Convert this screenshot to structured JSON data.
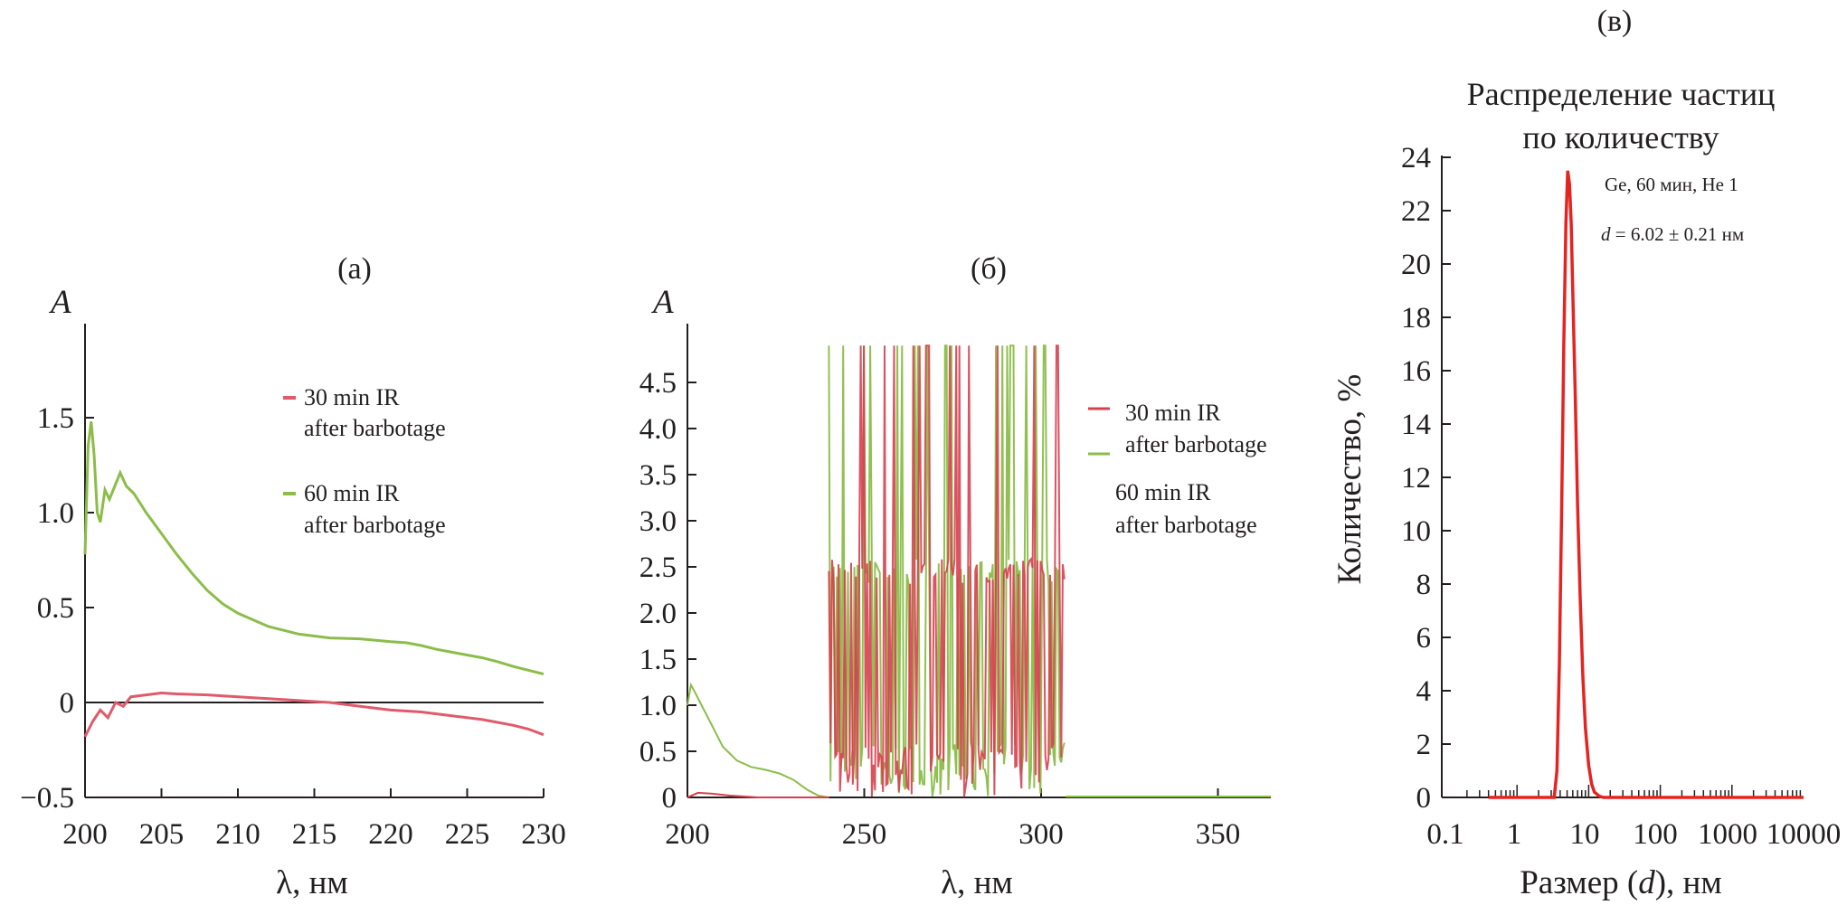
{
  "chart_data": [
    {
      "type": "line",
      "panel_label": "(а)",
      "ylabel": "A",
      "xlabel": "λ, нм",
      "xlim": [
        200,
        230
      ],
      "ylim": [
        -0.5,
        1.8
      ],
      "xticks": [
        "200",
        "205",
        "210",
        "215",
        "220",
        "225",
        "230"
      ],
      "yticks": [
        "−0.5",
        "0",
        "0.5",
        "1.0",
        "1.5"
      ],
      "legend": [
        "30 min IR",
        "after barbotage",
        "60 min IR",
        "after barbotage"
      ],
      "series": [
        {
          "name": "60 min IR after barbotage",
          "color": "#8bbd49",
          "x": [
            200,
            200.2,
            200.4,
            200.6,
            200.8,
            201.0,
            201.3,
            201.6,
            202.0,
            202.3,
            202.7,
            203.2,
            204,
            205,
            206,
            207,
            208,
            209,
            210,
            212,
            214,
            216,
            218,
            220,
            221,
            222,
            223,
            224,
            225,
            226,
            227,
            228,
            229,
            229.5,
            230
          ],
          "y": [
            0.78,
            1.35,
            1.48,
            1.3,
            1.0,
            0.95,
            1.12,
            1.07,
            1.15,
            1.21,
            1.14,
            1.1,
            1.0,
            0.89,
            0.78,
            0.68,
            0.59,
            0.52,
            0.47,
            0.4,
            0.36,
            0.34,
            0.335,
            0.32,
            0.315,
            0.3,
            0.28,
            0.265,
            0.25,
            0.235,
            0.215,
            0.19,
            0.17,
            0.16,
            0.15
          ]
        },
        {
          "name": "30 min IR after barbotage",
          "color": "#e05a6a",
          "x": [
            200,
            200.5,
            201,
            201.5,
            202,
            202.5,
            203,
            204,
            205,
            206,
            208,
            210,
            212,
            214,
            216,
            218,
            220,
            222,
            224,
            226,
            228,
            229,
            230
          ],
          "y": [
            -0.18,
            -0.1,
            -0.04,
            -0.08,
            0.0,
            -0.02,
            0.03,
            0.04,
            0.05,
            0.045,
            0.04,
            0.03,
            0.02,
            0.01,
            0.0,
            -0.02,
            -0.04,
            -0.05,
            -0.07,
            -0.09,
            -0.12,
            -0.14,
            -0.17
          ]
        }
      ]
    },
    {
      "type": "line",
      "panel_label": "(б)",
      "ylabel": "A",
      "xlabel": "λ, нм",
      "xlim": [
        200,
        365
      ],
      "ylim": [
        0,
        4.9
      ],
      "xticks": [
        "200",
        "250",
        "300",
        "350"
      ],
      "yticks": [
        "0",
        "0.5",
        "1.0",
        "1.5",
        "2.0",
        "2.5",
        "3.0",
        "3.5",
        "4.0",
        "4.5"
      ],
      "legend": [
        "30 min IR",
        "after barbotage",
        "60 min IR",
        "after barbotage"
      ],
      "series": [
        {
          "name": "60 min IR after barbotage",
          "color": "#8bbd49",
          "x": [
            200,
            201,
            202,
            204,
            206,
            208,
            210,
            214,
            218,
            222,
            226,
            230,
            234,
            237,
            240
          ],
          "y": [
            1.0,
            1.22,
            1.15,
            1.0,
            0.85,
            0.7,
            0.55,
            0.4,
            0.33,
            0.3,
            0.26,
            0.19,
            0.08,
            0.02,
            0.0
          ]
        },
        {
          "name": "30 min IR after barbotage",
          "color": "#d6404f",
          "x": [
            200,
            203,
            207,
            212,
            220,
            240
          ],
          "y": [
            0.0,
            0.05,
            0.04,
            0.02,
            0.0,
            0.0
          ]
        }
      ],
      "noise_region": {
        "x_start": 240,
        "x_end": 307,
        "saturation_value": 4.9,
        "plateau_value": 2.6
      }
    },
    {
      "type": "line",
      "panel_label": "(в)",
      "title": "Распределение частиц по количеству",
      "title_lines": [
        "Распределение частиц",
        "по количеству"
      ],
      "ylabel": "Количество, %",
      "xlabel": "Размер (d), нм",
      "xscale": "log",
      "xlim": [
        0.1,
        10000
      ],
      "ylim": [
        0,
        24
      ],
      "xticks": [
        "0.1",
        "1",
        "10",
        "100",
        "1000",
        "10000"
      ],
      "yticks": [
        "0",
        "2",
        "4",
        "6",
        "8",
        "10",
        "12",
        "14",
        "16",
        "18",
        "20",
        "22",
        "24"
      ],
      "annotations": [
        "Ge, 60 мин, He 1",
        "d = 6.02 ± 0.21 нм"
      ],
      "annotation_parts": {
        "d": "d",
        "rest": " = 6.02 ± 0.21 нм"
      },
      "series": [
        {
          "name": "Ge, 60 мин, He 1",
          "color": "#e52421",
          "x": [
            0.4,
            3.3,
            3.6,
            3.9,
            4.2,
            4.5,
            4.8,
            5.1,
            5.4,
            5.7,
            6.0,
            6.5,
            7.0,
            7.6,
            8.3,
            9.0,
            10,
            11,
            12,
            14,
            16,
            20,
            10000
          ],
          "y": [
            0,
            0,
            1,
            5,
            11,
            17,
            21.5,
            23.5,
            23.0,
            21.5,
            19.0,
            15.0,
            11.0,
            7.5,
            4.5,
            2.6,
            1.2,
            0.5,
            0.2,
            0.05,
            0,
            0,
            0
          ]
        }
      ]
    }
  ]
}
